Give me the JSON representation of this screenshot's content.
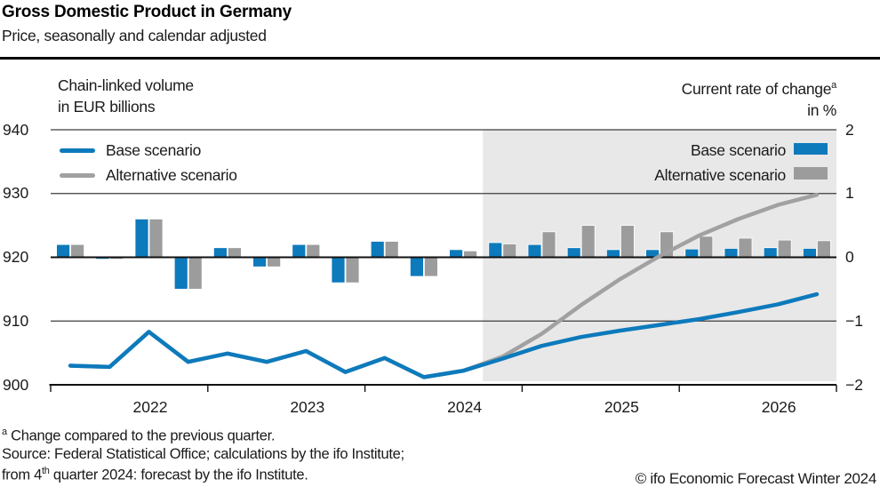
{
  "header": {
    "title": "Gross Domestic Product in Germany",
    "subtitle": "Price, seasonally and calendar adjusted"
  },
  "axis_headers": {
    "left_line1": "Chain-linked volume",
    "left_line2": "in EUR billions",
    "right_line1": "Current rate of change",
    "right_sup": "a",
    "right_line2": "in %"
  },
  "legend_lines": {
    "base": "Base scenario",
    "alt": "Alternative scenario"
  },
  "legend_bars": {
    "base": "Base scenario",
    "alt": "Alternative scenario"
  },
  "colors": {
    "base_blue": "#0d7abc",
    "alt_gray_bar": "#9c9c9c",
    "alt_gray_line": "#a1a1a1",
    "forecast_shading": "#e8e8e8",
    "gridline": "#3d3d3d",
    "axis": "#111111"
  },
  "chart_data": {
    "type": "combo (line levels + bar rates)",
    "quarters": [
      "2022Q1",
      "2022Q2",
      "2022Q3",
      "2022Q4",
      "2023Q1",
      "2023Q2",
      "2023Q3",
      "2023Q4",
      "2024Q1",
      "2024Q2",
      "2024Q3",
      "2024Q4",
      "2025Q1",
      "2025Q2",
      "2025Q3",
      "2025Q4",
      "2026Q1",
      "2026Q2",
      "2026Q3",
      "2026Q4"
    ],
    "year_ticks": [
      "2022",
      "2023",
      "2024",
      "2025",
      "2026"
    ],
    "left_axis": {
      "label": "Chain-linked volume in EUR billions",
      "ticks": [
        "940",
        "930",
        "920",
        "910",
        "900"
      ],
      "range": [
        900,
        940
      ]
    },
    "right_axis": {
      "label": "Current rate of change in %",
      "ticks": [
        "2",
        "1",
        "0",
        "−1",
        "−2"
      ],
      "range": [
        -2,
        2
      ]
    },
    "forecast_start_quarter": "2024Q4",
    "line_series": [
      {
        "name": "Base scenario",
        "values": [
          903.0,
          902.8,
          908.3,
          903.6,
          904.9,
          903.6,
          905.3,
          902.0,
          904.2,
          901.2,
          902.2,
          904.1,
          906.1,
          907.5,
          908.5,
          909.4,
          910.3,
          911.4,
          912.6,
          914.2
        ]
      },
      {
        "name": "Alternative scenario",
        "values": [
          903.0,
          902.8,
          908.3,
          903.6,
          904.9,
          903.6,
          905.3,
          902.0,
          904.2,
          901.2,
          902.2,
          904.4,
          908.0,
          912.5,
          916.6,
          920.2,
          923.4,
          926.0,
          928.2,
          929.8
        ]
      }
    ],
    "bar_series": [
      {
        "name": "Base scenario",
        "values": [
          0.2,
          -0.03,
          0.6,
          -0.5,
          0.15,
          -0.15,
          0.2,
          -0.4,
          0.25,
          -0.3,
          0.12,
          0.23,
          0.2,
          0.15,
          0.12,
          0.12,
          0.13,
          0.14,
          0.15,
          0.14
        ]
      },
      {
        "name": "Alternative scenario",
        "values": [
          0.2,
          -0.03,
          0.6,
          -0.5,
          0.15,
          -0.15,
          0.2,
          -0.4,
          0.25,
          -0.3,
          0.1,
          0.21,
          0.4,
          0.5,
          0.5,
          0.4,
          0.33,
          0.3,
          0.27,
          0.26
        ]
      }
    ]
  },
  "footnotes": {
    "sup1": "a",
    "line1": " Change compared to the previous quarter.",
    "line2": "Source: Federal Statistical Office; calculations by the ifo Institute;",
    "line3a": "from 4",
    "line3sup": "th",
    "line3b": " quarter 2024: forecast by the ifo Institute.",
    "copyright": "© ifo Economic Forecast Winter 2024"
  }
}
